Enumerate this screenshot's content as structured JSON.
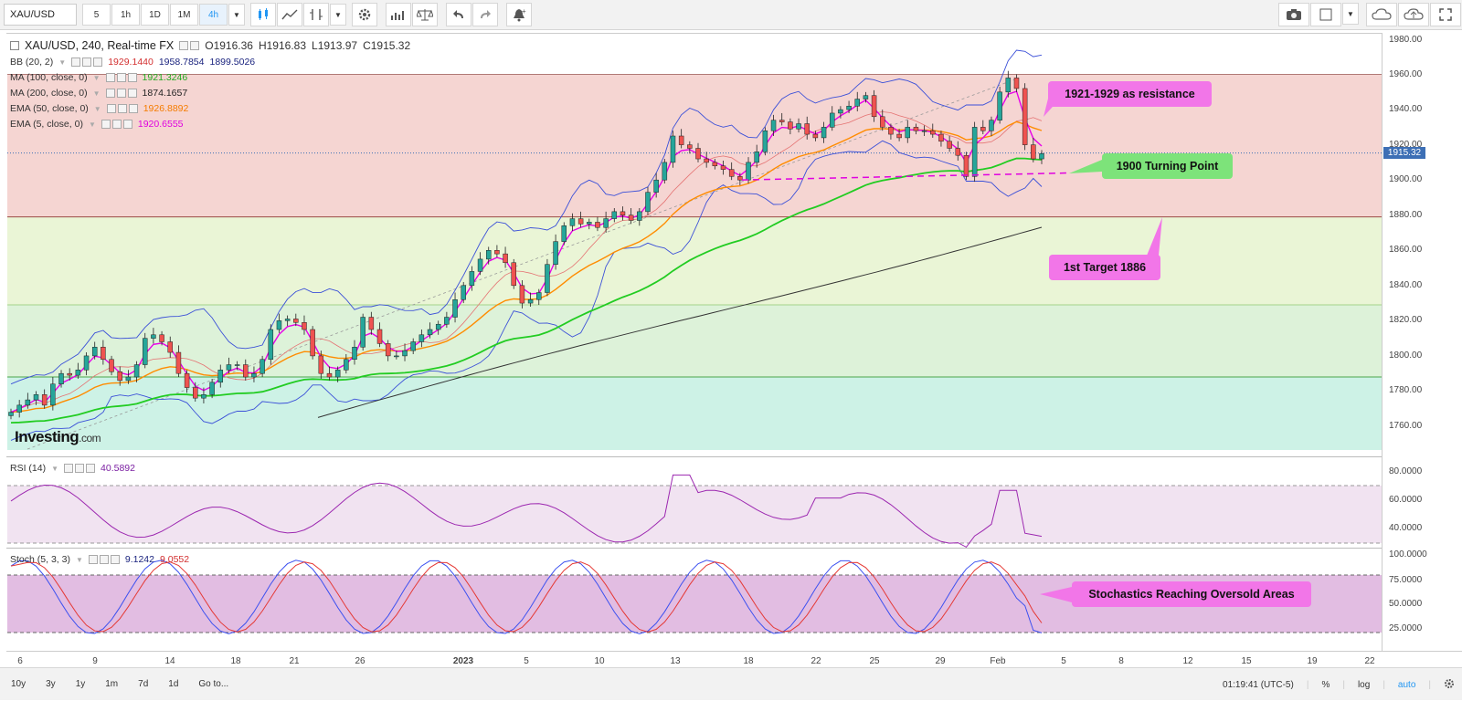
{
  "toolbar": {
    "symbol": "XAU/USD",
    "timeframes": [
      "5",
      "1h",
      "1D",
      "1M",
      "4h"
    ],
    "active_timeframe": "4h"
  },
  "legend": {
    "title": "XAU/USD, 240, Real-time FX",
    "open": "O1916.36",
    "high": "H1916.83",
    "low": "L1913.97",
    "close": "C1915.32",
    "bb": {
      "name": "BB (20, 2)",
      "v1": "1929.1440",
      "v2": "1958.7854",
      "v3": "1899.5026"
    },
    "ma100": {
      "name": "MA (100, close, 0)",
      "v": "1921.3246"
    },
    "ma200": {
      "name": "MA (200, close, 0)",
      "v": "1874.1657"
    },
    "ema50": {
      "name": "EMA (50, close, 0)",
      "v": "1926.8892"
    },
    "ema5": {
      "name": "EMA (5, close, 0)",
      "v": "1920.6555"
    },
    "rsi": {
      "name": "RSI (14)",
      "v": "40.5892"
    },
    "stoch": {
      "name": "Stoch (5, 3, 3)",
      "v1": "9.1242",
      "v2": "9.0552"
    }
  },
  "colors": {
    "bb": "#3b50d8",
    "ma100": "#22cc22",
    "ma200": "#333333",
    "ema50": "#ff8c00",
    "ema5": "#e800e8",
    "up_candle": "#26a69a",
    "down_candle": "#ef5350",
    "rsi_line": "#9c27b0",
    "stoch_k": "#3b50f0",
    "stoch_d": "#e53935"
  },
  "yaxis_main": [
    "1980.00",
    "1960.00",
    "1940.00",
    "1920.00",
    "1900.00",
    "1880.00",
    "1860.00",
    "1840.00",
    "1820.00",
    "1800.00",
    "1780.00",
    "1760.00"
  ],
  "current_price": "1915.32",
  "yaxis_rsi": [
    "80.0000",
    "60.0000",
    "40.0000"
  ],
  "yaxis_stoch": [
    "100.0000",
    "75.0000",
    "50.0000",
    "25.0000"
  ],
  "xaxis": [
    "6",
    "9",
    "14",
    "18",
    "21",
    "26",
    "2023",
    "5",
    "10",
    "13",
    "18",
    "22",
    "25",
    "29",
    "Feb",
    "5",
    "8",
    "12",
    "15",
    "19",
    "22"
  ],
  "callouts": {
    "resistance": "1921-1929 as resistance",
    "turning": "1900 Turning Point",
    "target": "1st Target 1886",
    "stoch": "Stochastics Reaching Oversold Areas"
  },
  "logo": {
    "main": "Investing",
    "suffix": ".com"
  },
  "bottom": {
    "ranges": [
      "10y",
      "3y",
      "1y",
      "1m",
      "7d",
      "1d",
      "Go to..."
    ],
    "clock": "01:19:41 (UTC-5)",
    "percent": "%",
    "log": "log",
    "auto": "auto"
  },
  "chart_data": {
    "type": "candlestick",
    "title": "XAU/USD, 240, Real-time FX",
    "ylim": [
      1745,
      1985
    ],
    "close_points": [
      1768,
      1772,
      1775,
      1778,
      1772,
      1784,
      1790,
      1789,
      1792,
      1800,
      1805,
      1798,
      1791,
      1786,
      1788,
      1795,
      1810,
      1812,
      1808,
      1802,
      1790,
      1782,
      1776,
      1778,
      1785,
      1792,
      1795,
      1795,
      1788,
      1790,
      1798,
      1815,
      1820,
      1821,
      1819,
      1815,
      1800,
      1790,
      1788,
      1792,
      1798,
      1805,
      1822,
      1815,
      1807,
      1800,
      1800,
      1803,
      1808,
      1812,
      1815,
      1818,
      1822,
      1832,
      1840,
      1848,
      1855,
      1860,
      1858,
      1853,
      1840,
      1830,
      1832,
      1836,
      1852,
      1865,
      1874,
      1878,
      1875,
      1876,
      1873,
      1878,
      1882,
      1880,
      1877,
      1882,
      1893,
      1900,
      1910,
      1925,
      1920,
      1918,
      1912,
      1910,
      1908,
      1906,
      1902,
      1900,
      1910,
      1916,
      1928,
      1934,
      1933,
      1929,
      1932,
      1926,
      1924,
      1930,
      1938,
      1940,
      1942,
      1946,
      1948,
      1936,
      1930,
      1926,
      1924,
      1930,
      1928,
      1928,
      1926,
      1922,
      1918,
      1914,
      1902,
      1930,
      1928,
      1934,
      1950,
      1958,
      1952,
      1920,
      1912,
      1915
    ]
  }
}
